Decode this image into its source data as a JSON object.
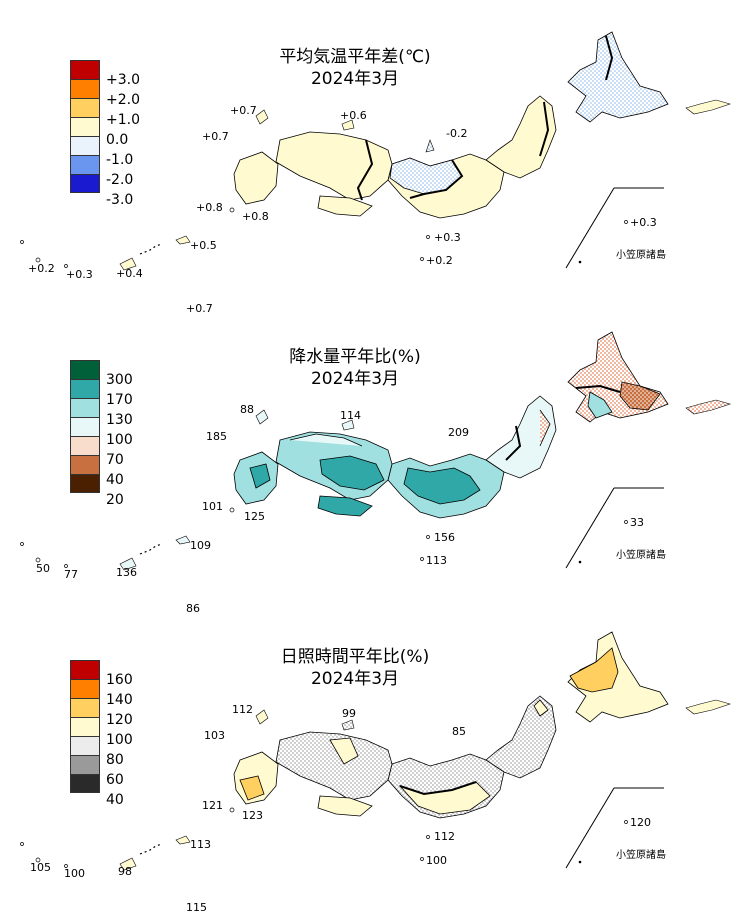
{
  "panels": [
    {
      "title_line1": "平均気温平年差(℃)",
      "title_line2": "2024年3月",
      "legend": [
        "+3.0",
        "+2.0",
        "+1.0",
        "0.0",
        "-1.0",
        "-2.0",
        "-3.0"
      ],
      "legend_colors": [
        "#c00000",
        "#ff8000",
        "#ffd060",
        "#fffad0",
        "pattern-lightblue",
        "pattern-blue",
        "pattern-navy"
      ],
      "station_values": [
        "+0.7",
        "+0.6",
        "+0.7",
        "-0.2",
        "+0.8",
        "+0.8",
        "+0.3",
        "+0.5",
        "+0.3",
        "+0.2",
        "+0.2",
        "+0.3",
        "+0.4",
        "+0.7"
      ],
      "inset_label": "小笠原諸島"
    },
    {
      "title_line1": "降水量平年比(%)",
      "title_line2": "2024年3月",
      "legend": [
        "300",
        "170",
        "130",
        "100",
        "70",
        "40",
        "20"
      ],
      "legend_colors": [
        "#00603a",
        "#30a8a8",
        "#a0e0e0",
        "#e8f8f8",
        "pattern-peach",
        "pattern-brown",
        "pattern-darkbrown"
      ],
      "station_values": [
        "88",
        "114",
        "185",
        "209",
        "101",
        "125",
        "33",
        "156",
        "109",
        "113",
        "50",
        "77",
        "136",
        "86"
      ],
      "inset_label": "小笠原諸島"
    },
    {
      "title_line1": "日照時間平年比(%)",
      "title_line2": "2024年3月",
      "legend": [
        "160",
        "140",
        "120",
        "100",
        "80",
        "60",
        "40"
      ],
      "legend_colors": [
        "#c00000",
        "#ff8000",
        "#ffd060",
        "#fffad0",
        "pattern-lightgray",
        "pattern-gray",
        "pattern-black"
      ],
      "station_values": [
        "112",
        "99",
        "103",
        "85",
        "121",
        "123",
        "120",
        "112",
        "113",
        "100",
        "105",
        "100",
        "98",
        "115"
      ],
      "inset_label": "小笠原諸島"
    }
  ]
}
